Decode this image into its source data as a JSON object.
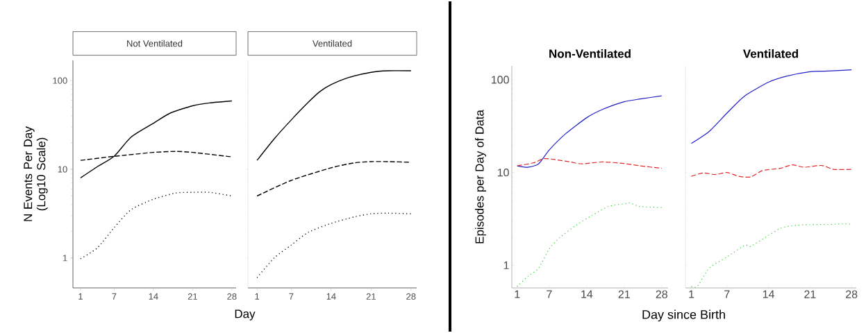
{
  "chart_data": [
    {
      "type": "line",
      "title": "Not Ventilated",
      "xlabel": "Day",
      "ylabel": "N Events Per Day (Log10 Scale)",
      "log": "y",
      "marker": "none",
      "xlim": [
        -0.36,
        28.76
      ],
      "ylim": [
        0.46,
        169
      ],
      "xticks": [
        1,
        7,
        14,
        21,
        28
      ],
      "yticks": [
        1,
        10,
        100
      ],
      "series": [
        {
          "color": "#000000",
          "line_style": "solid",
          "x": [
            1,
            4,
            7,
            10,
            14,
            17,
            21,
            24,
            28
          ],
          "values": [
            8,
            10.7,
            14,
            23,
            33,
            43,
            52,
            56,
            59
          ]
        },
        {
          "color": "#000000",
          "line_style": "dashed",
          "x": [
            1,
            7,
            14,
            18,
            21,
            28
          ],
          "values": [
            12.6,
            14,
            15.5,
            15.9,
            15.5,
            13.8
          ]
        },
        {
          "color": "#000000",
          "line_style": "dotted",
          "x": [
            1,
            4,
            7,
            10,
            14,
            18,
            21,
            24,
            28
          ],
          "values": [
            0.98,
            1.3,
            2.2,
            3.5,
            4.6,
            5.4,
            5.5,
            5.5,
            5
          ]
        }
      ]
    },
    {
      "type": "line",
      "title": "Ventilated",
      "log": "y",
      "marker": "none",
      "tick_labels": "x",
      "xlim": [
        -0.6,
        29
      ],
      "ylim": [
        0.46,
        169
      ],
      "yticks": [
        1,
        10,
        100
      ],
      "xticks": [
        1,
        7,
        14,
        21,
        28
      ],
      "series": [
        {
          "color": "#000000",
          "line_style": "solid",
          "x": [
            1,
            4,
            7,
            10,
            12,
            14,
            17,
            21,
            24,
            28
          ],
          "values": [
            12.6,
            22,
            36,
            57,
            75,
            90,
            108,
            124,
            129,
            129
          ]
        },
        {
          "color": "#000000",
          "line_style": "dashed",
          "x": [
            1,
            7,
            14,
            18,
            21,
            24,
            28
          ],
          "values": [
            5,
            7.5,
            10.4,
            11.8,
            12.2,
            12.2,
            12
          ]
        },
        {
          "color": "#000000",
          "line_style": "dotted",
          "x": [
            1,
            4,
            7,
            10,
            14,
            18,
            21,
            24,
            28
          ],
          "values": [
            0.6,
            1,
            1.4,
            1.95,
            2.46,
            2.9,
            3.15,
            3.2,
            3.15
          ]
        }
      ]
    },
    {
      "type": "line",
      "title": "Non-Ventilated",
      "ylabel": "Episodes per Day of Data",
      "log": "y",
      "marker": "none",
      "xlim": [
        0,
        29.2
      ],
      "ylim": [
        0.57,
        141
      ],
      "xticks": [
        1,
        7,
        14,
        21,
        28
      ],
      "yticks": [
        1,
        10,
        100
      ],
      "series": [
        {
          "color": "#1f1fc8",
          "line_style": "solid",
          "x": [
            1,
            3,
            5,
            7,
            10,
            14,
            17,
            21,
            24,
            28
          ],
          "values": [
            11.8,
            11.4,
            12.4,
            17.5,
            26,
            39,
            48,
            58,
            62,
            67
          ]
        },
        {
          "color": "#e02828",
          "line_style": "dashed",
          "x": [
            1,
            4,
            6,
            8,
            11,
            13,
            17,
            21,
            24,
            28
          ],
          "values": [
            11.8,
            12.7,
            14.1,
            13.8,
            13,
            12.4,
            13,
            12.5,
            11.8,
            11.1
          ]
        },
        {
          "color": "#33cc33",
          "line_style": "dotted",
          "x": [
            1,
            3,
            5,
            7,
            9,
            12,
            15,
            18,
            21,
            22,
            24,
            28
          ],
          "values": [
            0.59,
            0.76,
            0.93,
            1.5,
            2,
            2.7,
            3.45,
            4.3,
            4.6,
            4.7,
            4.3,
            4.2
          ]
        }
      ]
    },
    {
      "type": "line",
      "title": "Ventilated",
      "xlabel": "Day since Birth",
      "log": "y",
      "marker": "none",
      "tick_labels": "x",
      "xlim": [
        0,
        28.8
      ],
      "ylim": [
        0.57,
        141
      ],
      "yticks": [
        1,
        10,
        100
      ],
      "xticks": [
        1,
        7,
        14,
        21,
        28
      ],
      "series": [
        {
          "color": "#1f1fc8",
          "line_style": "solid",
          "x": [
            1,
            4,
            7,
            10,
            14,
            17,
            21,
            24,
            28
          ],
          "values": [
            20.6,
            27.7,
            43.7,
            67,
            94,
            109,
            122,
            124,
            128
          ]
        },
        {
          "color": "#e02828",
          "line_style": "dashed",
          "x": [
            1,
            3,
            5,
            7,
            9,
            11,
            13,
            16,
            18,
            20,
            23,
            25,
            28
          ],
          "values": [
            9.1,
            9.9,
            9.5,
            10,
            9.1,
            8.95,
            10.5,
            11.1,
            12.1,
            11.4,
            11.9,
            10.8,
            10.8
          ]
        },
        {
          "color": "#33cc33",
          "line_style": "dotted",
          "x": [
            1,
            2,
            4,
            7,
            10,
            11,
            14,
            16,
            18,
            21,
            24,
            27,
            28
          ],
          "values": [
            0.59,
            0.59,
            0.93,
            1.23,
            1.64,
            1.6,
            2.1,
            2.5,
            2.67,
            2.75,
            2.75,
            2.8,
            2.75
          ]
        }
      ]
    }
  ]
}
